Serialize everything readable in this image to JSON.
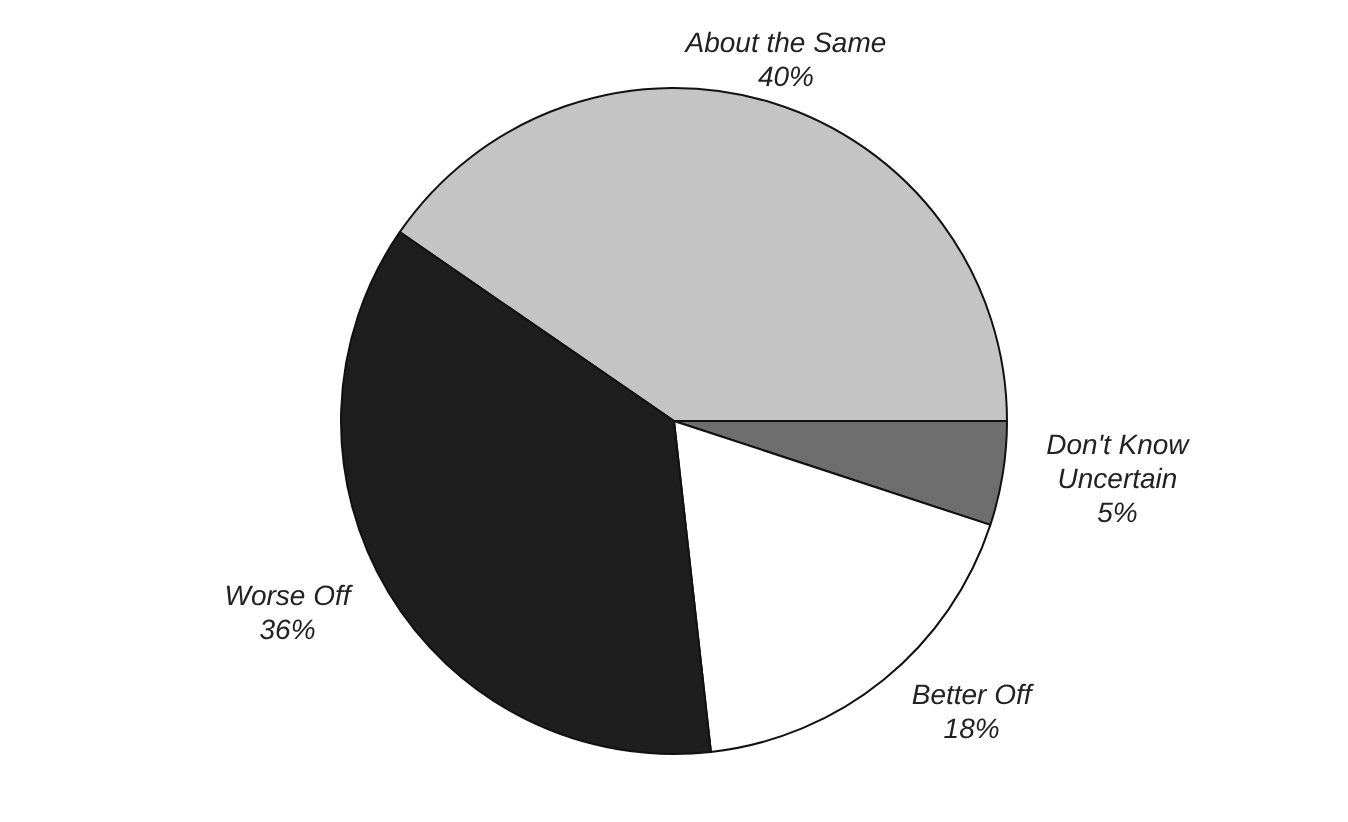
{
  "chart_data": {
    "type": "pie",
    "categories": [
      "About the Same",
      "Don't Know Uncertain",
      "Better Off",
      "Worse Off"
    ],
    "values": [
      40,
      5,
      18,
      36
    ],
    "colors": [
      "#c4c4c4",
      "#6e6e6e",
      "#ffffff",
      "#1e1e1e"
    ],
    "value_labels": [
      "40%",
      "5%",
      "18%",
      "36%"
    ],
    "legend": false
  }
}
